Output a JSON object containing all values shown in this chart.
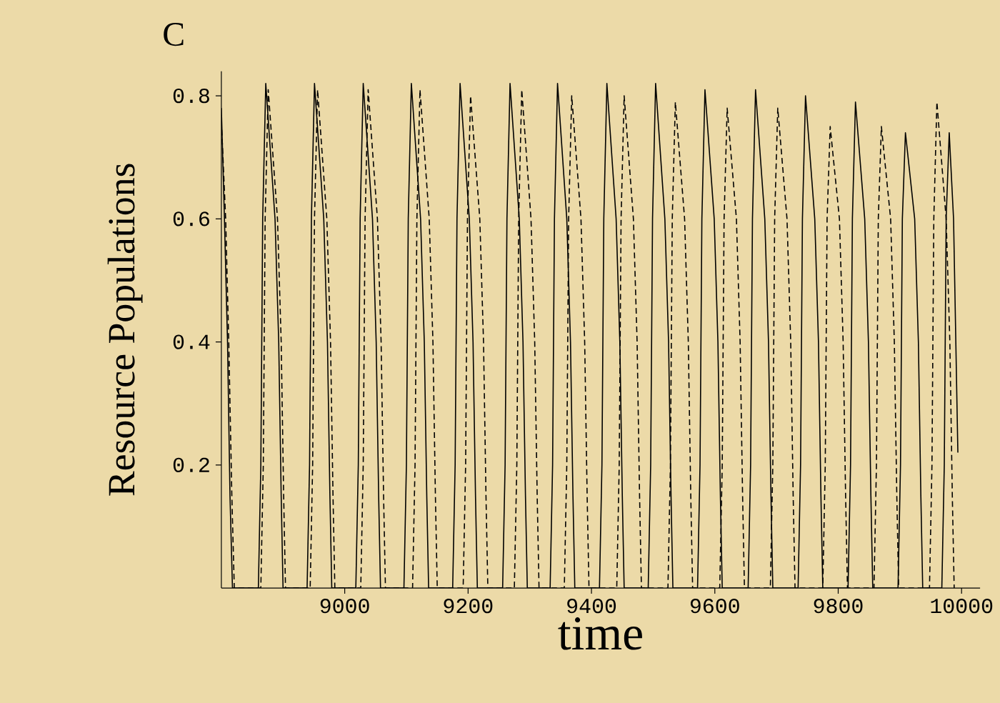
{
  "chart_data": {
    "type": "line",
    "title": "C",
    "xlabel": "time",
    "ylabel": "Resource Populations",
    "xlim": [
      8800,
      10030
    ],
    "ylim": [
      0,
      0.84
    ],
    "xticks": [
      9000,
      9200,
      9400,
      9600,
      9800,
      10000
    ],
    "yticks": [
      0.2,
      0.4,
      0.6,
      0.8
    ],
    "grid": false,
    "marker": "none",
    "series": [
      {
        "color": "#000000",
        "line_style": "solid",
        "x": [
          8800,
          8805,
          8810,
          8814,
          8818,
          8860,
          8864,
          8867,
          8872,
          8887,
          8893,
          8897,
          8900,
          8939,
          8943,
          8946,
          8951,
          8966,
          8972,
          8976,
          8979,
          9018,
          9022,
          9025,
          9030,
          9045,
          9051,
          9055,
          9058,
          9096,
          9100,
          9103,
          9108,
          9123,
          9129,
          9133,
          9136,
          9175,
          9179,
          9182,
          9187,
          9202,
          9208,
          9212,
          9215,
          9256,
          9260,
          9263,
          9268,
          9283,
          9289,
          9293,
          9296,
          9333,
          9337,
          9340,
          9345,
          9360,
          9366,
          9370,
          9373,
          9413,
          9417,
          9420,
          9425,
          9440,
          9446,
          9450,
          9453,
          9492,
          9496,
          9499,
          9504,
          9519,
          9525,
          9529,
          9532,
          9572,
          9576,
          9579,
          9584,
          9599,
          9605,
          9609,
          9612,
          9654,
          9658,
          9661,
          9666,
          9681,
          9687,
          9691,
          9694,
          9735,
          9739,
          9742,
          9747,
          9762,
          9768,
          9772,
          9775,
          9816,
          9820,
          9823,
          9828,
          9843,
          9849,
          9853,
          9856,
          9897,
          9901,
          9904,
          9909,
          9924,
          9930,
          9934,
          9937,
          9968,
          9972,
          9975,
          9980,
          9987,
          9994
        ],
        "values": [
          0.78,
          0.6,
          0.4,
          0.15,
          0,
          0,
          0.2,
          0.6,
          0.82,
          0.6,
          0.4,
          0.15,
          0,
          0,
          0.2,
          0.6,
          0.82,
          0.6,
          0.4,
          0.15,
          0,
          0,
          0.2,
          0.6,
          0.82,
          0.6,
          0.4,
          0.15,
          0,
          0,
          0.2,
          0.6,
          0.82,
          0.6,
          0.4,
          0.15,
          0,
          0,
          0.2,
          0.6,
          0.82,
          0.6,
          0.4,
          0.15,
          0,
          0,
          0.2,
          0.6,
          0.82,
          0.6,
          0.4,
          0.15,
          0,
          0,
          0.2,
          0.6,
          0.82,
          0.6,
          0.4,
          0.15,
          0,
          0,
          0.2,
          0.6,
          0.82,
          0.6,
          0.4,
          0.15,
          0,
          0,
          0.2,
          0.6,
          0.82,
          0.6,
          0.4,
          0.15,
          0,
          0,
          0.2,
          0.6,
          0.81,
          0.6,
          0.4,
          0.15,
          0,
          0,
          0.2,
          0.6,
          0.81,
          0.6,
          0.4,
          0.15,
          0,
          0,
          0.2,
          0.6,
          0.8,
          0.6,
          0.4,
          0.15,
          0,
          0,
          0.2,
          0.6,
          0.79,
          0.6,
          0.4,
          0.15,
          0,
          0,
          0.2,
          0.6,
          0.74,
          0.6,
          0.4,
          0.15,
          0,
          0,
          0.2,
          0.6,
          0.74,
          0.6,
          0.22
        ]
      },
      {
        "color": "#000000",
        "line_style": "dashed",
        "x": [
          8800,
          8807,
          8812,
          8817,
          8821,
          8864,
          8868,
          8871,
          8876,
          8891,
          8897,
          8901,
          8904,
          8944,
          8948,
          8951,
          8956,
          8971,
          8977,
          8981,
          8984,
          9026,
          9030,
          9033,
          9038,
          9053,
          9059,
          9063,
          9066,
          9110,
          9114,
          9117,
          9122,
          9137,
          9143,
          9147,
          9150,
          9192,
          9196,
          9199,
          9204,
          9219,
          9225,
          9229,
          9232,
          9275,
          9279,
          9282,
          9287,
          9302,
          9308,
          9312,
          9315,
          9356,
          9360,
          9363,
          9368,
          9383,
          9389,
          9393,
          9396,
          9441,
          9445,
          9448,
          9453,
          9468,
          9474,
          9478,
          9481,
          9524,
          9528,
          9531,
          9536,
          9551,
          9557,
          9561,
          9564,
          9608,
          9612,
          9615,
          9620,
          9635,
          9641,
          9645,
          9648,
          9690,
          9694,
          9697,
          9702,
          9717,
          9723,
          9727,
          9730,
          9775,
          9779,
          9782,
          9787,
          9802,
          9808,
          9812,
          9815,
          9858,
          9862,
          9865,
          9870,
          9885,
          9891,
          9895,
          9898,
          9948,
          9952,
          9955,
          9960,
          9975,
          9981,
          9985,
          9988
        ],
        "values": [
          0.76,
          0.6,
          0.4,
          0.15,
          0,
          0,
          0.2,
          0.6,
          0.81,
          0.6,
          0.4,
          0.15,
          0,
          0,
          0.2,
          0.6,
          0.81,
          0.6,
          0.4,
          0.15,
          0,
          0,
          0.2,
          0.6,
          0.81,
          0.6,
          0.4,
          0.15,
          0,
          0,
          0.2,
          0.6,
          0.81,
          0.6,
          0.4,
          0.15,
          0,
          0,
          0.2,
          0.6,
          0.8,
          0.6,
          0.4,
          0.15,
          0,
          0,
          0.2,
          0.6,
          0.81,
          0.6,
          0.4,
          0.15,
          0,
          0,
          0.2,
          0.6,
          0.8,
          0.6,
          0.4,
          0.15,
          0,
          0,
          0.2,
          0.6,
          0.8,
          0.6,
          0.4,
          0.15,
          0,
          0,
          0.2,
          0.6,
          0.79,
          0.6,
          0.4,
          0.15,
          0,
          0,
          0.2,
          0.6,
          0.78,
          0.6,
          0.4,
          0.15,
          0,
          0,
          0.2,
          0.6,
          0.78,
          0.6,
          0.4,
          0.15,
          0,
          0,
          0.2,
          0.6,
          0.75,
          0.6,
          0.4,
          0.15,
          0,
          0,
          0.2,
          0.6,
          0.75,
          0.6,
          0.4,
          0.15,
          0,
          0,
          0.2,
          0.6,
          0.79,
          0.6,
          0.4,
          0.15,
          0
        ]
      }
    ]
  }
}
